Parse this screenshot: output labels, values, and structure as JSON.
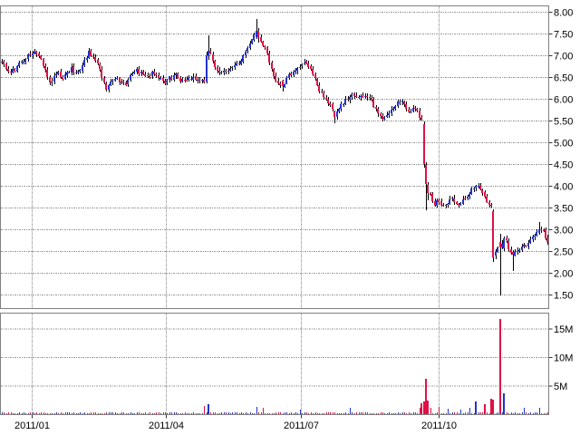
{
  "chart_data": {
    "type": "candlestick",
    "description": "Daily stock price candlestick chart (upper pane) with daily volume bars (lower pane), Dec 2010 - Dec 2011",
    "legend": "none",
    "grid": "on",
    "x_axis": {
      "tick_labels": [
        "2011/01",
        "2011/04",
        "2011/07",
        "2011/10"
      ],
      "tick_day_index": [
        13.8,
        75.4,
        137.5,
        200.8
      ],
      "total_days": 252
    },
    "price_axis": {
      "side": "right",
      "tick_labels": [
        "8.00",
        "7.50",
        "7.00",
        "6.50",
        "6.00",
        "5.50",
        "5.00",
        "4.50",
        "4.00",
        "3.50",
        "3.00",
        "2.50",
        "2.00",
        "1.50"
      ],
      "tick_values": [
        8.0,
        7.5,
        7.0,
        6.5,
        6.0,
        5.5,
        5.0,
        4.5,
        4.0,
        3.5,
        3.0,
        2.5,
        2.0,
        1.5
      ],
      "visible_min": 1.17,
      "visible_max": 8.15
    },
    "volume_axis": {
      "side": "right",
      "tick_labels": [
        "15M",
        "10M",
        "5M"
      ],
      "tick_values_millions": [
        15,
        10,
        5
      ],
      "visible_max_millions": 17.8
    },
    "series": {
      "close_waypoints": [
        [
          0,
          6.85
        ],
        [
          2,
          6.72
        ],
        [
          4,
          6.62
        ],
        [
          6,
          6.7
        ],
        [
          8,
          6.82
        ],
        [
          11,
          6.95
        ],
        [
          13,
          7.05
        ],
        [
          15,
          7.1
        ],
        [
          17,
          7.0
        ],
        [
          19,
          6.8
        ],
        [
          21,
          6.5
        ],
        [
          22,
          6.38
        ],
        [
          24,
          6.52
        ],
        [
          26,
          6.62
        ],
        [
          28,
          6.45
        ],
        [
          30,
          6.6
        ],
        [
          32,
          6.72
        ],
        [
          34,
          6.6
        ],
        [
          36,
          6.68
        ],
        [
          38,
          6.9
        ],
        [
          40,
          7.1
        ],
        [
          42,
          7.0
        ],
        [
          44,
          6.85
        ],
        [
          46,
          6.5
        ],
        [
          48,
          6.25
        ],
        [
          50,
          6.38
        ],
        [
          52,
          6.52
        ],
        [
          54,
          6.42
        ],
        [
          57,
          6.32
        ],
        [
          59,
          6.5
        ],
        [
          62,
          6.68
        ],
        [
          64,
          6.6
        ],
        [
          67,
          6.52
        ],
        [
          69,
          6.58
        ],
        [
          71,
          6.6
        ],
        [
          73,
          6.45
        ],
        [
          75,
          6.42
        ],
        [
          77,
          6.48
        ],
        [
          80,
          6.55
        ],
        [
          82,
          6.45
        ],
        [
          85,
          6.4
        ],
        [
          87,
          6.48
        ],
        [
          90,
          6.45
        ],
        [
          93,
          6.42
        ],
        [
          94,
          7.02
        ],
        [
          95,
          7.12
        ],
        [
          96,
          7.0
        ],
        [
          97,
          6.85
        ],
        [
          99,
          6.62
        ],
        [
          101,
          6.66
        ],
        [
          103,
          6.6
        ],
        [
          106,
          6.72
        ],
        [
          109,
          6.85
        ],
        [
          111,
          7.0
        ],
        [
          113,
          7.15
        ],
        [
          115,
          7.35
        ],
        [
          117,
          7.58
        ],
        [
          118,
          7.42
        ],
        [
          120,
          7.28
        ],
        [
          122,
          7.05
        ],
        [
          124,
          6.7
        ],
        [
          126,
          6.45
        ],
        [
          128,
          6.35
        ],
        [
          129,
          6.3
        ],
        [
          131,
          6.5
        ],
        [
          133,
          6.6
        ],
        [
          135,
          6.65
        ],
        [
          137,
          6.75
        ],
        [
          139,
          6.88
        ],
        [
          141,
          6.78
        ],
        [
          143,
          6.6
        ],
        [
          145,
          6.35
        ],
        [
          147,
          6.12
        ],
        [
          150,
          5.95
        ],
        [
          152,
          5.75
        ],
        [
          153,
          5.6
        ],
        [
          155,
          5.78
        ],
        [
          158,
          6.0
        ],
        [
          161,
          6.1
        ],
        [
          164,
          6.0
        ],
        [
          167,
          6.08
        ],
        [
          170,
          5.95
        ],
        [
          173,
          5.7
        ],
        [
          175,
          5.58
        ],
        [
          178,
          5.72
        ],
        [
          181,
          5.88
        ],
        [
          184,
          5.94
        ],
        [
          186,
          5.82
        ],
        [
          188,
          5.7
        ],
        [
          190,
          5.8
        ],
        [
          192,
          5.62
        ],
        [
          193,
          5.52
        ],
        [
          194,
          4.52
        ],
        [
          195,
          4.05
        ],
        [
          197,
          3.8
        ],
        [
          199,
          3.6
        ],
        [
          201,
          3.68
        ],
        [
          203,
          3.55
        ],
        [
          205,
          3.62
        ],
        [
          207,
          3.7
        ],
        [
          209,
          3.58
        ],
        [
          211,
          3.62
        ],
        [
          213,
          3.74
        ],
        [
          215,
          3.86
        ],
        [
          217,
          3.96
        ],
        [
          219,
          4.0
        ],
        [
          221,
          3.88
        ],
        [
          223,
          3.66
        ],
        [
          225,
          3.56
        ],
        [
          226,
          2.36
        ],
        [
          227,
          2.5
        ],
        [
          228,
          2.62
        ],
        [
          229,
          2.6
        ],
        [
          230,
          2.7
        ],
        [
          231,
          2.8
        ],
        [
          232,
          2.72
        ],
        [
          233,
          2.6
        ],
        [
          234,
          2.5
        ],
        [
          235,
          2.42
        ],
        [
          237,
          2.5
        ],
        [
          239,
          2.58
        ],
        [
          241,
          2.66
        ],
        [
          243,
          2.76
        ],
        [
          245,
          2.9
        ],
        [
          247,
          3.02
        ],
        [
          249,
          2.94
        ],
        [
          251,
          2.74
        ]
      ],
      "ohlc_overrides": {
        "94": [
          6.4,
          7.1,
          6.36,
          7.02
        ],
        "95": [
          7.02,
          7.46,
          6.9,
          7.12
        ],
        "117": [
          7.42,
          7.85,
          7.38,
          7.58
        ],
        "118": [
          7.58,
          7.64,
          7.3,
          7.42
        ],
        "129": [
          6.42,
          6.45,
          6.18,
          6.3
        ],
        "153": [
          5.72,
          5.75,
          5.44,
          5.6
        ],
        "194": [
          5.42,
          5.48,
          4.42,
          4.52,
          2.3
        ],
        "195": [
          4.5,
          4.56,
          3.45,
          4.05,
          6.3
        ],
        "196": [
          4.03,
          4.1,
          3.68,
          3.85,
          2.4
        ],
        "226": [
          3.42,
          3.47,
          2.26,
          2.36,
          2.6
        ],
        "227": [
          2.4,
          2.55,
          2.32,
          2.5
        ],
        "229": [
          2.72,
          2.9,
          1.5,
          2.6,
          16.8
        ],
        "231": [
          2.58,
          2.84,
          2.52,
          2.8,
          3.7
        ],
        "235": [
          2.5,
          2.54,
          2.05,
          2.42
        ],
        "247": [
          2.92,
          3.18,
          2.88,
          3.02
        ]
      },
      "volume_spikes_millions": [
        [
          93,
          1.2
        ],
        [
          95,
          1.5
        ],
        [
          117,
          1.0
        ],
        [
          120,
          0.9
        ],
        [
          137,
          0.7
        ],
        [
          160,
          0.8
        ],
        [
          192,
          0.8
        ],
        [
          193,
          1.6
        ],
        [
          197,
          0.9
        ],
        [
          201,
          1.1
        ],
        [
          205,
          0.7
        ],
        [
          211,
          0.6
        ],
        [
          215,
          0.8
        ],
        [
          218,
          2.0
        ],
        [
          222,
          1.5
        ],
        [
          225,
          2.4
        ],
        [
          240,
          0.7
        ],
        [
          247,
          0.9
        ]
      ],
      "volume_base_millions": 0.2,
      "noise_seed": 42,
      "noise_close": 0.05,
      "noise_wick": 0.12
    },
    "colors": {
      "up": "#2233cc",
      "down": "#e01045",
      "wick": "#000000",
      "grid": "#999999",
      "border": "#808080",
      "background": "#ffffff",
      "label": "#000000"
    }
  }
}
